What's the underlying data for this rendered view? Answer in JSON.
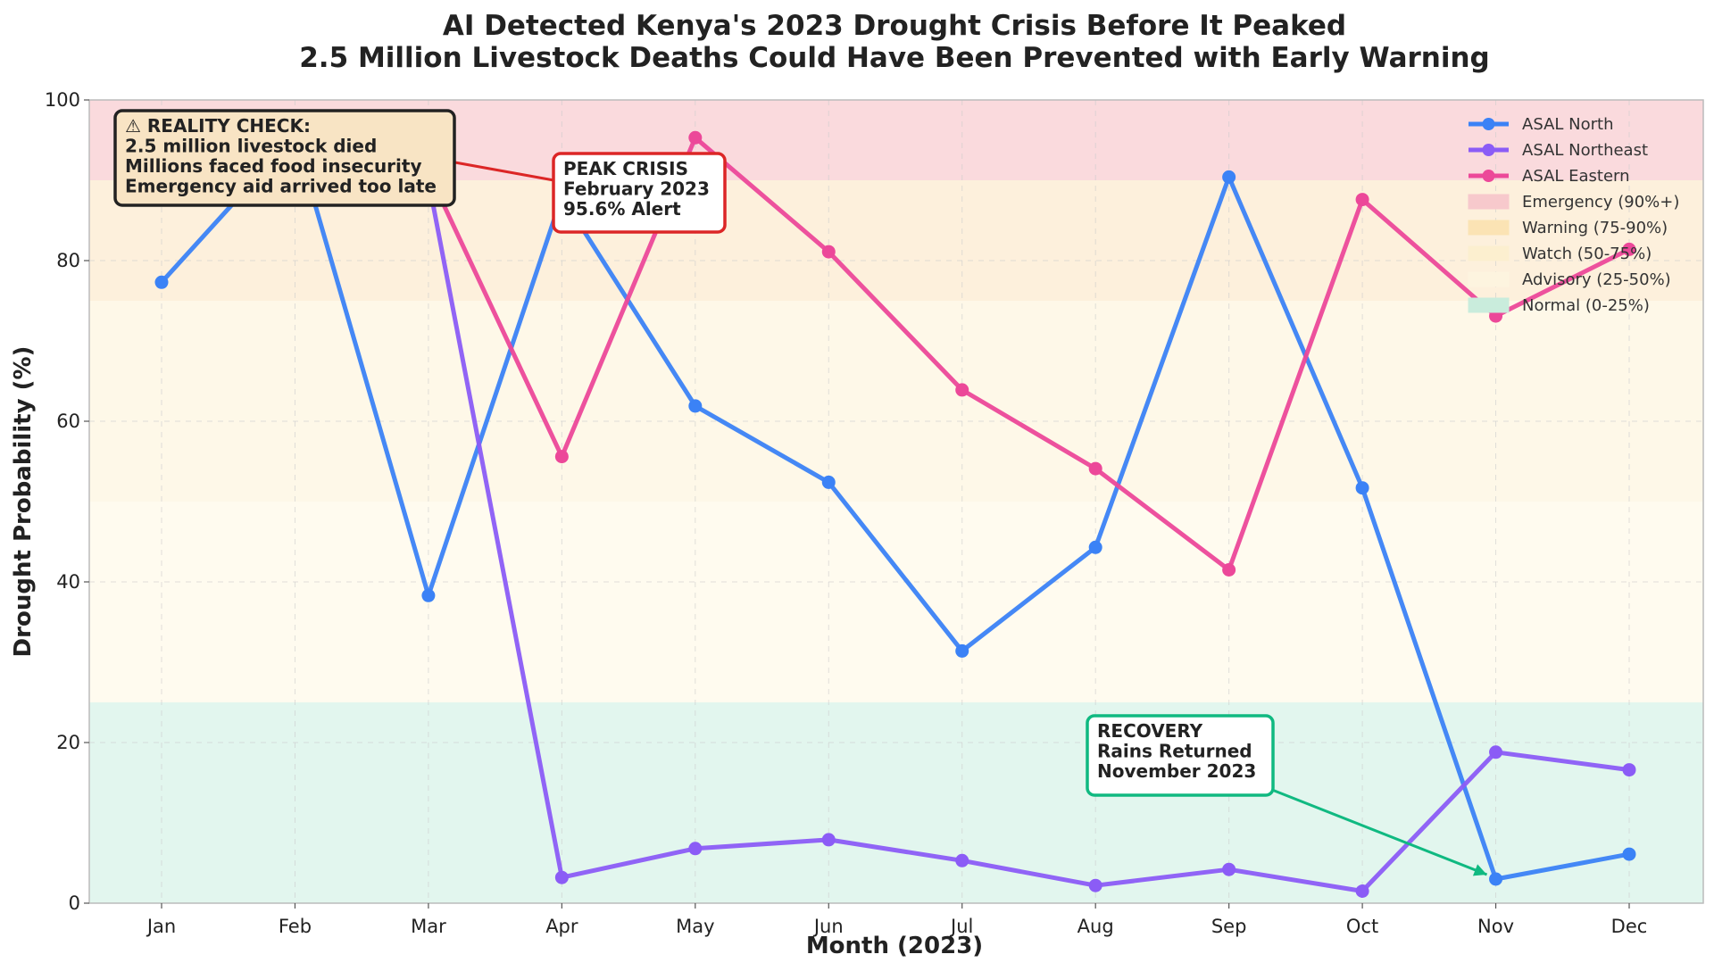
{
  "chart_data": {
    "type": "line",
    "title": "AI Detected Kenya's 2023 Drought Crisis Before It Peaked",
    "subtitle": "2.5 Million Livestock Deaths Could Have Been Prevented with Early Warning",
    "xlabel": "Month (2023)",
    "ylabel": "Drought Probability (%)",
    "ylim": [
      0,
      100
    ],
    "yticks": [
      0,
      20,
      40,
      60,
      80,
      100
    ],
    "grid": true,
    "legend_position": "top-right",
    "categories": [
      "Jan",
      "Feb",
      "Mar",
      "Apr",
      "May",
      "Jun",
      "Jul",
      "Aug",
      "Sep",
      "Oct",
      "Nov",
      "Dec"
    ],
    "series": [
      {
        "name": "ASAL North",
        "color": "#3b82f6",
        "values": [
          77.3,
          95.6,
          38.3,
          88.0,
          61.9,
          52.4,
          31.4,
          44.3,
          90.4,
          51.7,
          3.0,
          6.1
        ]
      },
      {
        "name": "ASAL Northeast",
        "color": "#8b5cf6",
        "values": [
          95.0,
          95.5,
          90.0,
          3.2,
          6.8,
          7.9,
          5.3,
          2.2,
          4.2,
          1.5,
          18.8,
          16.6
        ]
      },
      {
        "name": "ASAL Eastern",
        "color": "#ec4899",
        "values": [
          95.6,
          94.0,
          91.0,
          55.6,
          95.3,
          81.1,
          63.9,
          54.1,
          41.5,
          87.6,
          73.1,
          81.4
        ]
      }
    ],
    "bands": [
      {
        "name": "Emergency (90%+)",
        "from": 90,
        "to": 100,
        "color": "#fadadd"
      },
      {
        "name": "Warning (75-90%)",
        "from": 75,
        "to": 90,
        "color": "#fdf0dc"
      },
      {
        "name": "Watch (50-75%)",
        "from": 50,
        "to": 75,
        "color": "#fef8e8"
      },
      {
        "name": "Advisory (25-50%)",
        "from": 25,
        "to": 50,
        "color": "#fffbef"
      },
      {
        "name": "Normal (0-25%)",
        "from": 0,
        "to": 25,
        "color": "#e2f6ee"
      }
    ],
    "annotations": [
      {
        "id": "reality",
        "lines": [
          "⚠ REALITY CHECK:",
          "2.5 million livestock died",
          "Millions faced food insecurity",
          "Emergency aid arrived too late"
        ],
        "border": "#222222",
        "fill": "#f8e4c4"
      },
      {
        "id": "peak",
        "lines": [
          "PEAK CRISIS",
          "February 2023",
          "95.6% Alert"
        ],
        "border": "#dc2626",
        "fill": "#ffffff",
        "target": {
          "x": "Feb",
          "y": 95.6
        }
      },
      {
        "id": "recovery",
        "lines": [
          "RECOVERY",
          "Rains Returned",
          "November 2023"
        ],
        "border": "#10b981",
        "fill": "#ffffff",
        "target": {
          "x": "Nov",
          "y": 3.0
        }
      }
    ]
  }
}
